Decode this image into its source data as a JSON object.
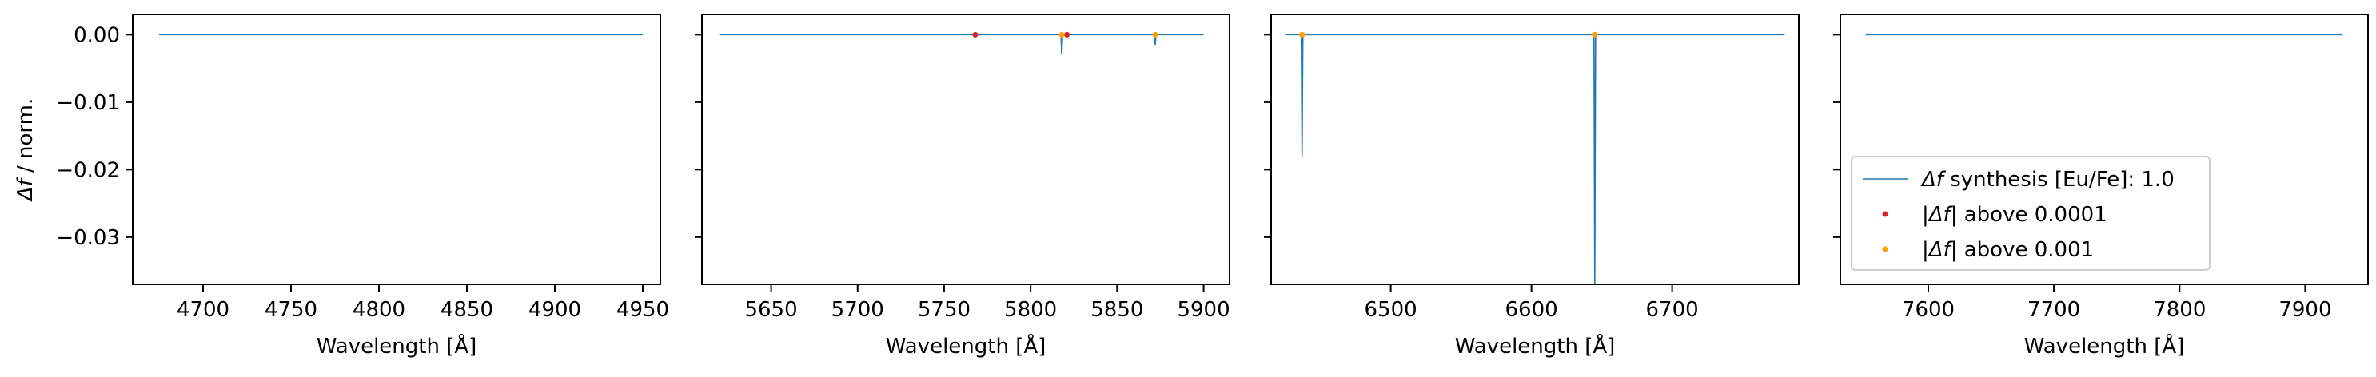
{
  "chart_data": [
    {
      "type": "line",
      "xlabel": "Wavelength [Å]",
      "ylabel": "Δf / norm.",
      "xlim": [
        4660,
        4960
      ],
      "ylim": [
        -0.037,
        0.003
      ],
      "xticks": [
        4700,
        4750,
        4800,
        4850,
        4900,
        4950
      ],
      "yticks": [
        0.0,
        -0.01,
        -0.02,
        -0.03
      ],
      "ytick_labels": [
        "0.00",
        "−0.01",
        "−0.02",
        "−0.03"
      ],
      "line": {
        "x_start": 4675,
        "x_end": 4950,
        "dips": []
      },
      "points_1e4": [],
      "points_1e3": [],
      "legend": null
    },
    {
      "type": "line",
      "xlabel": "Wavelength [Å]",
      "ylabel": "",
      "xlim": [
        5610,
        5915
      ],
      "ylim": [
        -0.037,
        0.003
      ],
      "xticks": [
        5650,
        5700,
        5750,
        5800,
        5850,
        5900
      ],
      "yticks": [
        0.0,
        -0.01,
        -0.02,
        -0.03
      ],
      "ytick_labels": [],
      "line": {
        "x_start": 5620,
        "x_end": 5900,
        "dips": [
          {
            "x": 5818,
            "y": -0.003
          },
          {
            "x": 5872,
            "y": -0.0015
          }
        ]
      },
      "points_1e4": [
        {
          "x": 5768,
          "y": 0.0
        },
        {
          "x": 5821,
          "y": 0.0
        }
      ],
      "points_1e3": [
        {
          "x": 5818,
          "y": 0.0
        },
        {
          "x": 5872,
          "y": 0.0
        }
      ],
      "legend": null
    },
    {
      "type": "line",
      "xlabel": "Wavelength [Å]",
      "ylabel": "",
      "xlim": [
        6415,
        6790
      ],
      "ylim": [
        -0.037,
        0.003
      ],
      "xticks": [
        6500,
        6600,
        6700
      ],
      "yticks": [
        0.0,
        -0.01,
        -0.02,
        -0.03
      ],
      "ytick_labels": [],
      "line": {
        "x_start": 6425,
        "x_end": 6780,
        "dips": [
          {
            "x": 6437,
            "y": -0.018
          },
          {
            "x": 6645,
            "y": -0.037
          }
        ]
      },
      "points_1e4": [
        {
          "x": 6437,
          "y": 0.0
        },
        {
          "x": 6645,
          "y": 0.0
        }
      ],
      "points_1e3": [
        {
          "x": 6437,
          "y": 0.0
        },
        {
          "x": 6645,
          "y": 0.0
        }
      ],
      "legend": null
    },
    {
      "type": "line",
      "xlabel": "Wavelength [Å]",
      "ylabel": "",
      "xlim": [
        7530,
        7950
      ],
      "ylim": [
        -0.037,
        0.003
      ],
      "xticks": [
        7600,
        7700,
        7800,
        7900
      ],
      "yticks": [
        0.0,
        -0.01,
        -0.02,
        -0.03
      ],
      "ytick_labels": [],
      "line": {
        "x_start": 7550,
        "x_end": 7930,
        "dips": []
      },
      "points_1e4": [],
      "points_1e3": [],
      "legend": {
        "placement": "lower-left",
        "entries": [
          {
            "marker": "line",
            "color": "#1f77b4",
            "label_italic_part": "Δf",
            "label": " synthesis [Eu/Fe]: 1.0"
          },
          {
            "marker": "dot",
            "color": "#d62728",
            "label_italic_part": "|Δf|",
            "label": " above 0.0001"
          },
          {
            "marker": "dot",
            "color": "#ff9f0a",
            "label_italic_part": "|Δf|",
            "label": " above 0.001"
          }
        ]
      }
    }
  ],
  "colors": {
    "line": "#1f77b4",
    "points_1e4": "#d62728",
    "points_1e3": "#ff9f0a",
    "axes": "#000000"
  }
}
